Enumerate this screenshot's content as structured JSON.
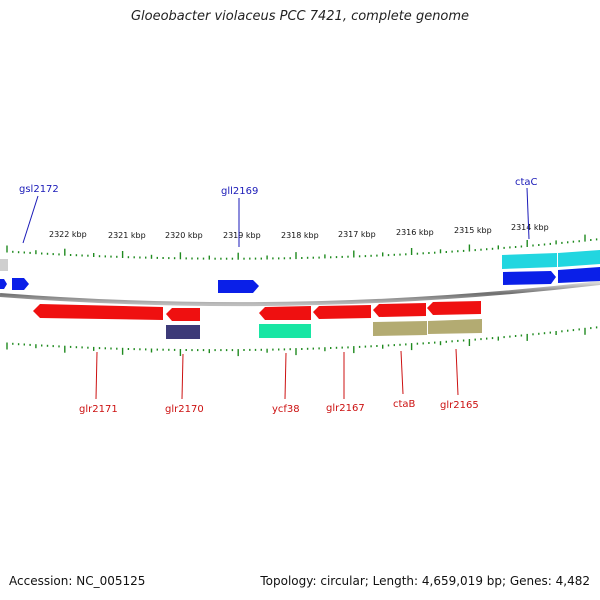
{
  "title": "Gloeobacter violaceus PCC 7421, complete genome",
  "footer": {
    "accession": "Accession: NC_005125",
    "stats": "Topology: circular; Length: 4,659,019 bp; Genes: 4,482"
  },
  "kbp_labels": [
    "2322 kbp",
    "2321 kbp",
    "2320 kbp",
    "2319 kbp",
    "2318 kbp",
    "2317 kbp",
    "2316 kbp",
    "2315 kbp",
    "2314 kbp"
  ],
  "colors": {
    "forward_cds": "#0a1fe8",
    "reverse_cds": "#ef1010",
    "cyan_feature": "#22d6e0",
    "navy_feature": "#3c3a78",
    "green_feature": "#18e6a4",
    "olive_feature": "#b3ab72",
    "gray_feature": "#cfcfcf",
    "backbone": "#8a8a8a",
    "tick": "#1f8a1f",
    "label_forward": "#1a1ab8",
    "label_reverse": "#cc1111"
  },
  "gene_labels": {
    "top": [
      "gsl2172",
      "gll2169",
      "ctaC"
    ],
    "bottom": [
      "glr2171",
      "glr2170",
      "ycf38",
      "glr2167",
      "ctaB",
      "glr2165"
    ]
  }
}
